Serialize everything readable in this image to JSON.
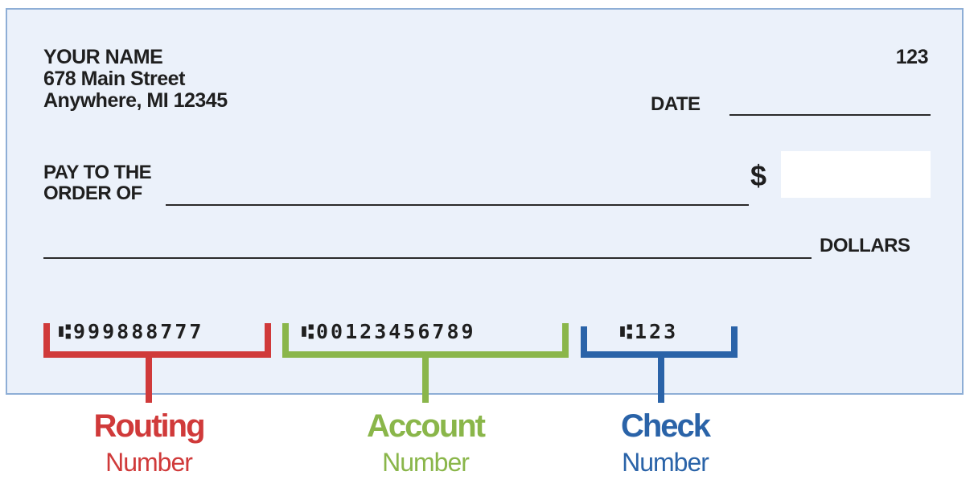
{
  "check": {
    "owner_name": "YOUR NAME",
    "address_line1": "678 Main Street",
    "address_line2": "Anywhere, MI  12345",
    "check_number": "123",
    "date_label": "DATE",
    "pay_line1": "PAY TO THE",
    "pay_line2": "ORDER OF",
    "dollar_sign": "$",
    "dollars_label": "DOLLARS",
    "background_color": "#ebf1fa",
    "border_color": "#8eaed6"
  },
  "micr": {
    "routing": "⑆999888777",
    "account": "⑆00123456789",
    "check": "⑆123"
  },
  "legend": {
    "routing": {
      "title": "Routing",
      "subtitle": "Number",
      "color": "#d03a3a"
    },
    "account": {
      "title": "Account",
      "subtitle": "Number",
      "color": "#8ab64a"
    },
    "check": {
      "title": "Check",
      "subtitle": "Number",
      "color": "#2a63a8"
    }
  }
}
